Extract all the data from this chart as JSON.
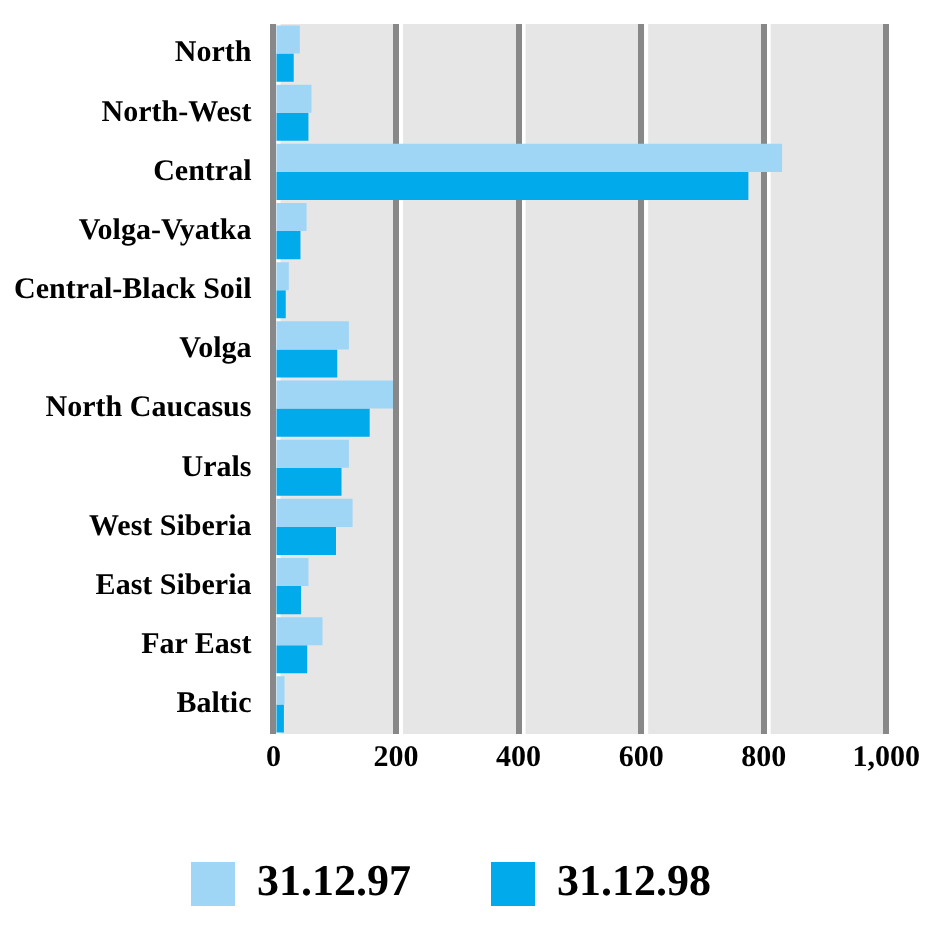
{
  "chart_data": {
    "type": "bar",
    "orientation": "horizontal",
    "categories": [
      "North",
      "North-West",
      "Central",
      "Volga-Vyatka",
      "Central-Black Soil",
      "Volga",
      "North Caucasus",
      "Urals",
      "West Siberia",
      "East Siberia",
      "Far East",
      "Baltic"
    ],
    "series": [
      {
        "name": "31.12.97",
        "color": "#9fd5f5",
        "values": [
          43,
          62,
          830,
          54,
          25,
          123,
          195,
          123,
          129,
          57,
          80,
          18
        ]
      },
      {
        "name": "31.12.98",
        "color": "#00aaeb",
        "values": [
          33,
          57,
          775,
          44,
          20,
          104,
          157,
          111,
          102,
          45,
          55,
          17
        ]
      }
    ],
    "xlim": [
      0,
      1000
    ],
    "xticks": [
      0,
      200,
      400,
      600,
      800,
      {
        "value": 1000,
        "label": "1,000"
      }
    ],
    "grid": "x",
    "legend": "bottom"
  }
}
